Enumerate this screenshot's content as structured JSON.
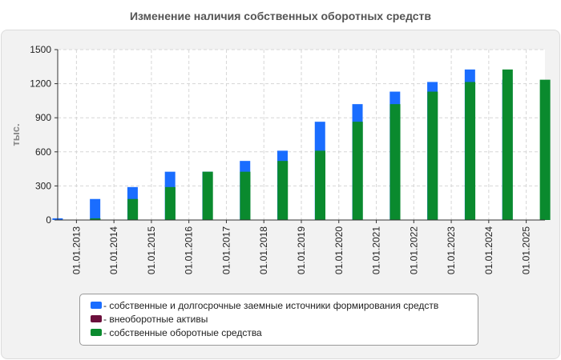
{
  "chart_data": {
    "type": "bar",
    "title": "Изменение наличия собственных оборотных средств",
    "ylabel": "тыс.",
    "xlabel": "",
    "ylim": [
      0,
      1500
    ],
    "yticks": [
      0,
      300,
      600,
      900,
      1200,
      1500
    ],
    "grid": true,
    "legend_position": "bottom",
    "categories": [
      "01.01.2013",
      "01.01.2014",
      "01.01.2015",
      "01.01.2016",
      "01.01.2017",
      "01.01.2018",
      "01.01.2019",
      "01.01.2020",
      "01.01.2021",
      "01.01.2022",
      "01.01.2023",
      "01.01.2024",
      "01.01.2025"
    ],
    "series": [
      {
        "name": "собственные и долгосрочные заемные источники формирования средств",
        "legend_label": "- собственные и долгосрочные заемные источники формирования средств",
        "color": "#1a6dff",
        "values": [
          15,
          185,
          290,
          425,
          425,
          520,
          610,
          865,
          1020,
          1130,
          1215,
          1325,
          1235
        ]
      },
      {
        "name": "внеоборотные активы",
        "legend_label": "- внеоборотные активы",
        "color": "#6b0f3c",
        "values": [
          3,
          3,
          3,
          3,
          3,
          3,
          3,
          3,
          3,
          3,
          3,
          3,
          3
        ]
      },
      {
        "name": "собственные оборотные средства",
        "legend_label": "- собственные оборотные средства",
        "color": "#0a8a2e",
        "values": [
          15,
          185,
          290,
          425,
          425,
          520,
          610,
          865,
          1020,
          1130,
          1215,
          1325,
          1235
        ]
      }
    ]
  }
}
